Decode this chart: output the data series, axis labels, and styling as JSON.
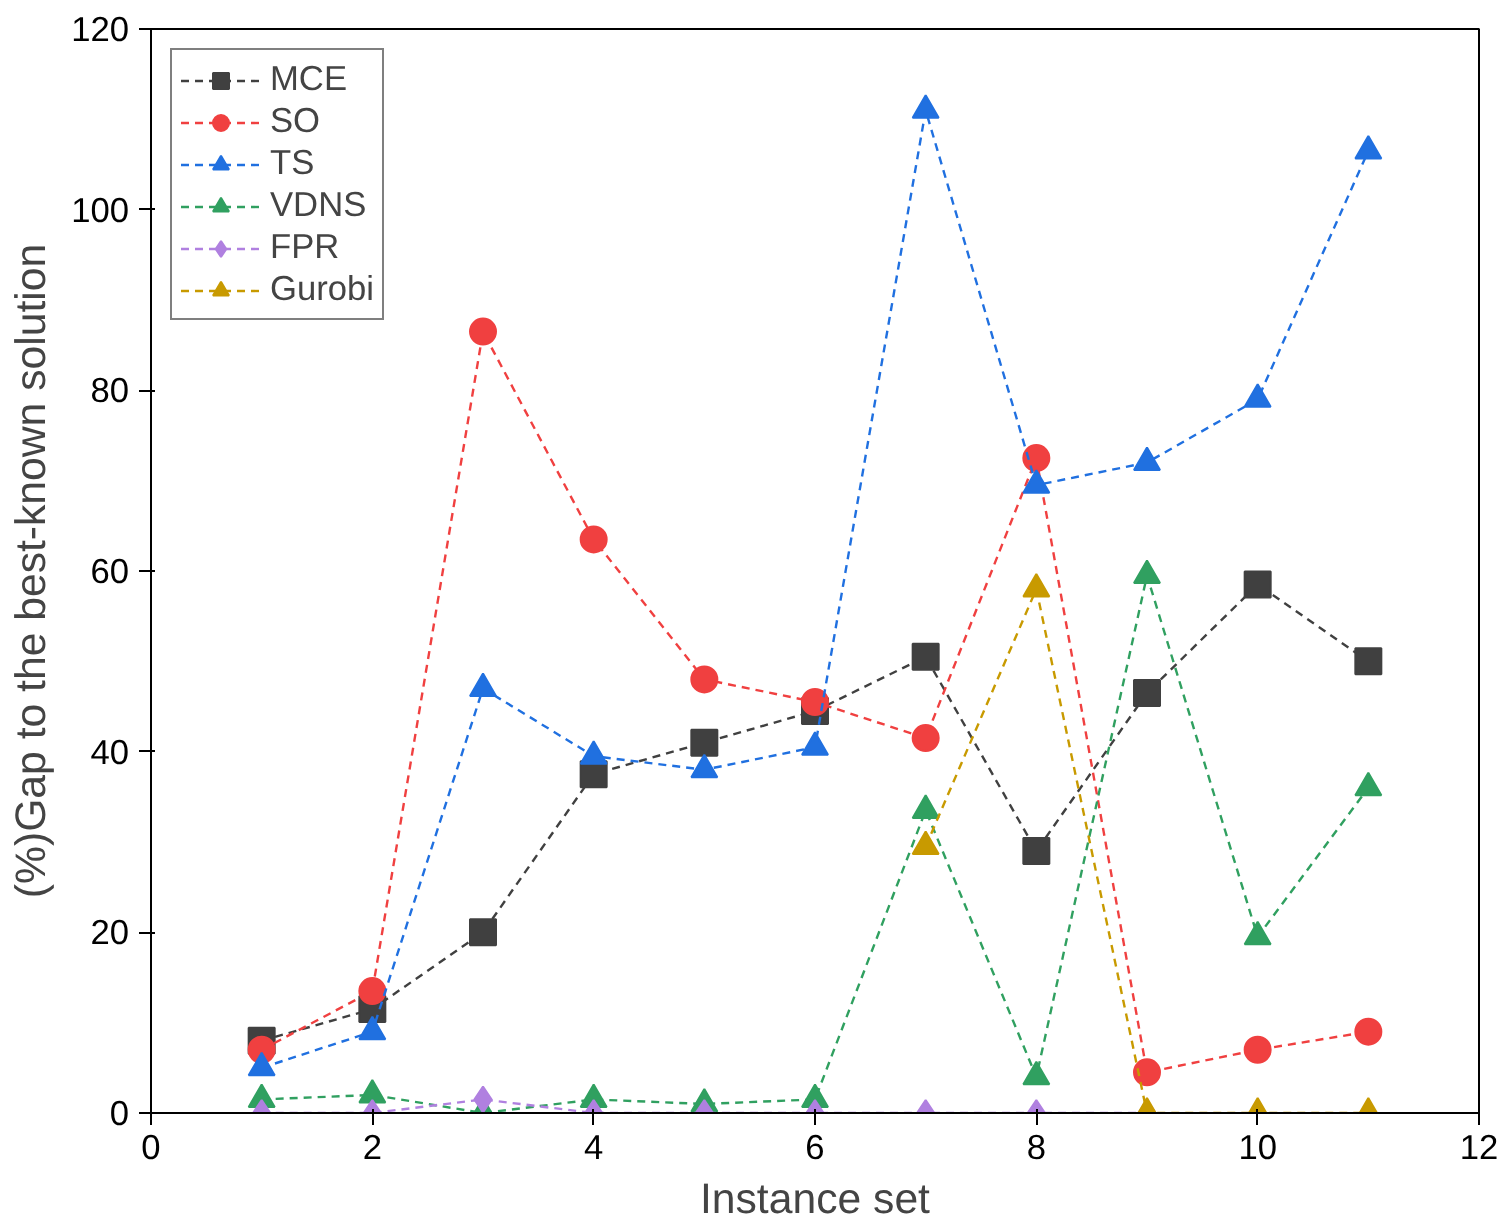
{
  "chart_data": {
    "type": "line",
    "xlabel": "Instance set",
    "ylabel": "(%)Gap to the best-known solution",
    "x": [
      1,
      2,
      3,
      4,
      5,
      6,
      7,
      8,
      9,
      10,
      11
    ],
    "series": [
      {
        "name": "MCE",
        "color": "#404040",
        "marker": "square",
        "values": [
          8,
          11.5,
          20,
          37.5,
          41,
          44.5,
          50.5,
          29,
          46.5,
          58.5,
          50
        ]
      },
      {
        "name": "SO",
        "color": "#f04040",
        "marker": "circle",
        "values": [
          7,
          13.5,
          86.5,
          63.5,
          48,
          45.5,
          41.5,
          72.5,
          4.5,
          7,
          9
        ]
      },
      {
        "name": "TS",
        "color": "#2070e0",
        "marker": "triangle",
        "values": [
          5,
          9,
          47,
          39.5,
          38,
          40.5,
          111,
          69.5,
          72,
          79,
          106.5
        ]
      },
      {
        "name": "VDNS",
        "color": "#30a060",
        "marker": "triangle",
        "values": [
          1.5,
          2,
          0,
          1.5,
          1,
          1.5,
          33.5,
          4,
          59.5,
          19.5,
          36
        ]
      },
      {
        "name": "FPR",
        "color": "#b080e0",
        "marker": "diamond",
        "values": [
          0,
          0,
          1.5,
          0,
          0,
          0,
          0,
          0,
          0,
          null,
          null
        ]
      },
      {
        "name": "Gurobi",
        "color": "#c89a00",
        "marker": "triangle",
        "x": [
          7,
          8,
          9,
          10,
          11
        ],
        "values": [
          29.5,
          58,
          0,
          0,
          0
        ]
      }
    ],
    "xlim": [
      0,
      12
    ],
    "xticks": [
      0,
      2,
      4,
      6,
      8,
      10,
      12
    ],
    "ylim": [
      0,
      120
    ],
    "yticks": [
      0,
      20,
      40,
      60,
      80,
      100,
      120
    ],
    "line_style": "dashed",
    "grid": false,
    "legend": "top left"
  }
}
